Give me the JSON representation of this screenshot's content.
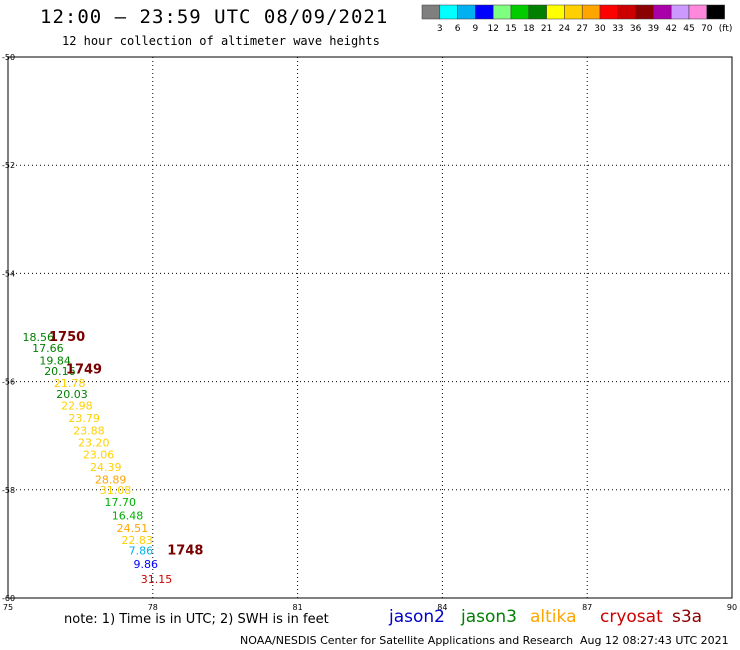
{
  "header": {
    "title": "12:00 – 23:59 UTC 08/09/2021",
    "subtitle": "12 hour collection of altimeter wave heights"
  },
  "legend": {
    "colors": [
      "#7f7f7f",
      "#00ffff",
      "#00b0f0",
      "#0000ff",
      "#7fff7f",
      "#00cc00",
      "#008000",
      "#ffff00",
      "#ffd000",
      "#ffa500",
      "#ff0000",
      "#cc0000",
      "#8b0000",
      "#aa00aa",
      "#cc99ff",
      "#ff88dd",
      "#000000"
    ],
    "labels": [
      "3",
      "6",
      "9",
      "12",
      "15",
      "18",
      "21",
      "24",
      "27",
      "30",
      "33",
      "36",
      "39",
      "42",
      "45",
      "70"
    ],
    "unit": "(ft)"
  },
  "map": {
    "lon_labels": [
      "75",
      "78",
      "81",
      "84",
      "87",
      "90"
    ],
    "lat_labels": [
      "-50",
      "-52",
      "-54",
      "-56",
      "-58",
      "-60"
    ],
    "lon_range": [
      75,
      90
    ],
    "lat_range": [
      -50,
      -60
    ],
    "observations": [
      {
        "value": "18.56",
        "lon": 75.3,
        "lat": -55.25,
        "color": "#008000"
      },
      {
        "value": "17.66",
        "lon": 75.5,
        "lat": -55.45,
        "color": "#008000"
      },
      {
        "value": "19.84",
        "lon": 75.65,
        "lat": -55.68,
        "color": "#008000"
      },
      {
        "value": "20.16",
        "lon": 75.75,
        "lat": -55.88,
        "color": "#008000"
      },
      {
        "value": "21.78",
        "lon": 75.95,
        "lat": -56.1,
        "color": "#ffd000"
      },
      {
        "value": "20.03",
        "lon": 76.0,
        "lat": -56.3,
        "color": "#008000"
      },
      {
        "value": "22.98",
        "lon": 76.1,
        "lat": -56.52,
        "color": "#ffd000"
      },
      {
        "value": "23.79",
        "lon": 76.25,
        "lat": -56.75,
        "color": "#ffd000"
      },
      {
        "value": "23.88",
        "lon": 76.35,
        "lat": -56.98,
        "color": "#ffd000"
      },
      {
        "value": "23.20",
        "lon": 76.45,
        "lat": -57.2,
        "color": "#ffd000"
      },
      {
        "value": "23.06",
        "lon": 76.55,
        "lat": -57.42,
        "color": "#ffd000"
      },
      {
        "value": "24.39",
        "lon": 76.7,
        "lat": -57.65,
        "color": "#ffd000"
      },
      {
        "value": "28.89",
        "lon": 76.8,
        "lat": -57.88,
        "color": "#ffa500"
      },
      {
        "value": "31.08",
        "lon": 76.9,
        "lat": -58.08,
        "color": "#ffd000"
      },
      {
        "value": "17.70",
        "lon": 77.0,
        "lat": -58.3,
        "color": "#00b000"
      },
      {
        "value": "16.48",
        "lon": 77.15,
        "lat": -58.55,
        "color": "#00b000"
      },
      {
        "value": "24.51",
        "lon": 77.25,
        "lat": -58.78,
        "color": "#ffa500"
      },
      {
        "value": "22.83",
        "lon": 77.35,
        "lat": -59.0,
        "color": "#ffd000"
      },
      {
        "value": "7.86",
        "lon": 77.5,
        "lat": -59.2,
        "color": "#00b0f0"
      },
      {
        "value": "9.86",
        "lon": 77.6,
        "lat": -59.45,
        "color": "#0000ff"
      },
      {
        "value": "31.15",
        "lon": 77.75,
        "lat": -59.72,
        "color": "#cc0000"
      }
    ],
    "time_labels": [
      {
        "text": "1750",
        "lon": 75.85,
        "lat": -55.25
      },
      {
        "text": "1749",
        "lon": 76.2,
        "lat": -55.85
      },
      {
        "text": "1748",
        "lon": 78.3,
        "lat": -59.2
      }
    ]
  },
  "footer": {
    "note": "note: 1) Time is in UTC; 2) SWH is in feet",
    "satellites": [
      {
        "name": "jason2",
        "color": "#0000cc"
      },
      {
        "name": "jason3",
        "color": "#008000"
      },
      {
        "name": "altika",
        "color": "#ffa500"
      },
      {
        "name": "cryosat",
        "color": "#cc0000"
      },
      {
        "name": "s3a",
        "color": "#8b0000"
      }
    ],
    "credit": "NOAA/NESDIS Center for Satellite Applications and Research",
    "timestamp": "Aug 12 08:27:43 UTC 2021"
  }
}
